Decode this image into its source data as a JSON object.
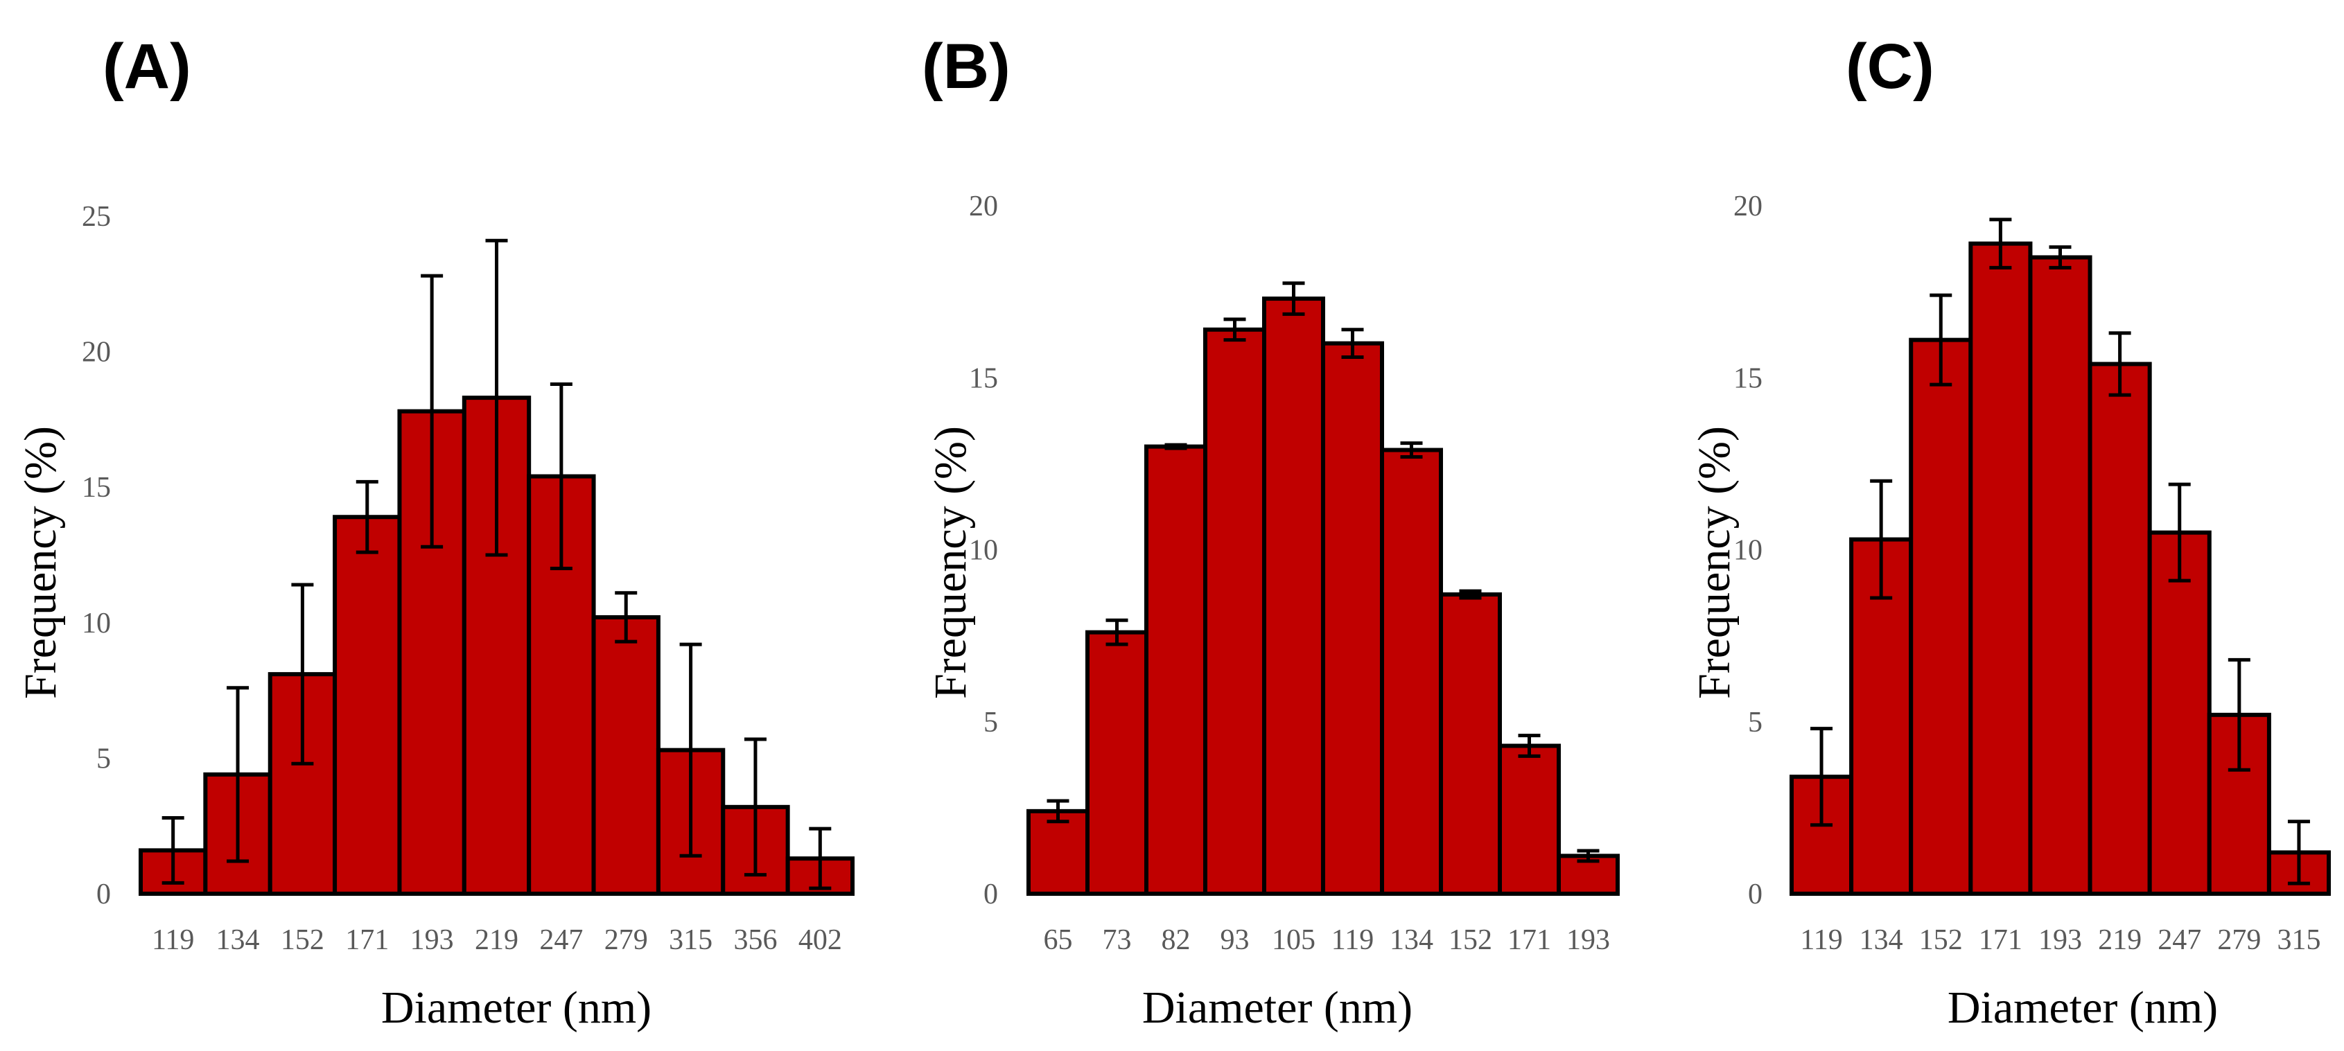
{
  "chart_data": [
    {
      "type": "bar",
      "panel_label": "(A)",
      "categories": [
        "119",
        "134",
        "152",
        "171",
        "193",
        "219",
        "247",
        "279",
        "315",
        "356",
        "402"
      ],
      "values": [
        1.6,
        4.4,
        8.1,
        13.9,
        17.8,
        18.3,
        15.4,
        10.2,
        5.3,
        3.2,
        1.3
      ],
      "errors": [
        1.2,
        3.2,
        3.3,
        1.3,
        5.0,
        5.8,
        3.4,
        0.9,
        3.9,
        2.5,
        1.1
      ],
      "y_ticks": [
        "0",
        "5",
        "10",
        "15",
        "20",
        "25"
      ],
      "ylim": [
        0,
        25
      ],
      "xlabel": "Diameter (nm)",
      "ylabel": "Frequency (%)",
      "colors": {
        "bar": "#c00000",
        "outline": "#000000"
      }
    },
    {
      "type": "bar",
      "panel_label": "(B)",
      "categories": [
        "65",
        "73",
        "82",
        "93",
        "105",
        "119",
        "134",
        "152",
        "171",
        "193"
      ],
      "values": [
        2.4,
        7.6,
        13.0,
        16.4,
        17.3,
        16.0,
        12.9,
        8.7,
        4.3,
        1.1
      ],
      "errors": [
        0.3,
        0.35,
        0.05,
        0.3,
        0.45,
        0.4,
        0.2,
        0.1,
        0.3,
        0.15
      ],
      "y_ticks": [
        "0",
        "5",
        "10",
        "15",
        "20"
      ],
      "ylim": [
        0,
        20
      ],
      "xlabel": "Diameter (nm)",
      "ylabel": "Frequency (%)",
      "colors": {
        "bar": "#c00000",
        "outline": "#000000"
      }
    },
    {
      "type": "bar",
      "panel_label": "(C)",
      "categories": [
        "119",
        "134",
        "152",
        "171",
        "193",
        "219",
        "247",
        "279",
        "315"
      ],
      "values": [
        3.4,
        10.3,
        16.1,
        18.9,
        18.5,
        15.4,
        10.5,
        5.2,
        1.2
      ],
      "errors": [
        1.4,
        1.7,
        1.3,
        0.7,
        0.3,
        0.9,
        1.4,
        1.6,
        0.9
      ],
      "y_ticks": [
        "0",
        "5",
        "10",
        "15",
        "20"
      ],
      "ylim": [
        0,
        20
      ],
      "xlabel": "Diameter (nm)",
      "ylabel": "Frequency (%)",
      "colors": {
        "bar": "#c00000",
        "outline": "#000000"
      }
    }
  ]
}
